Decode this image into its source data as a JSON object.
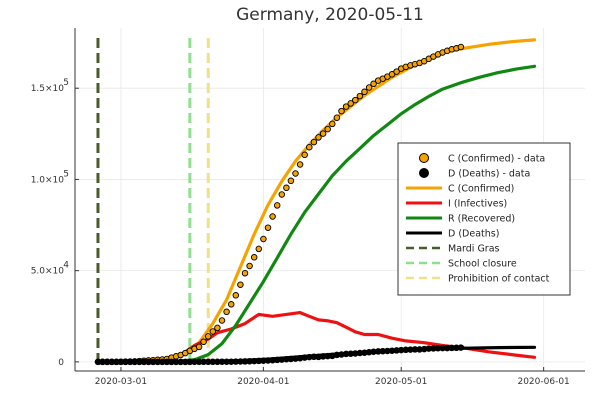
{
  "chart_data": {
    "type": "line",
    "title": "Germany, 2020-05-11",
    "xlabel": "",
    "ylabel": "",
    "x_axis": {
      "unit": "date",
      "range": [
        "2020-02-20",
        "2020-06-10"
      ],
      "ticks": [
        {
          "value": "2020-03-01",
          "label": "2020-03-01"
        },
        {
          "value": "2020-04-01",
          "label": "2020-04-01"
        },
        {
          "value": "2020-05-01",
          "label": "2020-05-01"
        },
        {
          "value": "2020-06-01",
          "label": "2020-06-01"
        }
      ]
    },
    "y_axis": {
      "range": [
        -5000,
        183000
      ],
      "ticks": [
        {
          "value": 0,
          "label": "0",
          "exp": ""
        },
        {
          "value": 50000,
          "label": "5.0×10",
          "exp": "4"
        },
        {
          "value": 100000,
          "label": "1.0×10",
          "exp": "5"
        },
        {
          "value": 150000,
          "label": "1.5×10",
          "exp": "5"
        }
      ]
    },
    "grid": true,
    "legend_position": "right",
    "data_series": [
      {
        "name": "C (Confirmed) - data",
        "color": "#f5a300",
        "marker": "circle",
        "start_date": "2020-02-25",
        "values": [
          18,
          21,
          26,
          53,
          66,
          117,
          150,
          188,
          240,
          400,
          639,
          795,
          902,
          1139,
          1296,
          1567,
          2369,
          3062,
          3795,
          4838,
          6012,
          7156,
          8198,
          10999,
          13957,
          16662,
          18610,
          22672,
          27436,
          31554,
          36508,
          42288,
          48582,
          52547,
          57298,
          61913,
          67366,
          73522,
          79696,
          85778,
          91714,
          95391,
          99225,
          103228,
          108202,
          113525,
          117658,
          120479,
          123016,
          125098,
          127584,
          130450,
          133830,
          137439,
          139897,
          141672,
          143457,
          145694,
          148046,
          150383,
          152438,
          154175,
          155193,
          156337,
          157641,
          159119,
          160758,
          161703,
          162496,
          163175,
          163860,
          164807,
          166091,
          167300,
          168551,
          169575,
          170508,
          171324,
          171879,
          172576
        ]
      },
      {
        "name": "D (Deaths) - data",
        "color": "#000000",
        "marker": "circle",
        "start_date": "2020-02-25",
        "values": [
          0,
          0,
          0,
          0,
          0,
          0,
          0,
          0,
          0,
          0,
          0,
          2,
          2,
          2,
          3,
          3,
          6,
          7,
          9,
          11,
          13,
          17,
          20,
          26,
          31,
          47,
          68,
          84,
          94,
          123,
          157,
          206,
          267,
          342,
          433,
          533,
          645,
          775,
          920,
          1107,
          1275,
          1444,
          1584,
          1810,
          2016,
          2349,
          2607,
          2767,
          2736,
          3022,
          3194,
          3294,
          3804,
          4052,
          4352,
          4459,
          4586,
          4862,
          5033,
          5279,
          5575,
          5760,
          5877,
          5976,
          6126,
          6314,
          6467,
          6623,
          6736,
          6812,
          6866,
          6993,
          7275,
          7392,
          7510,
          7549,
          7569,
          7661,
          7738,
          7809
        ]
      }
    ],
    "model_series": [
      {
        "name": "C (Confirmed)",
        "color": "#f5a300",
        "points": [
          [
            "2020-02-25",
            0
          ],
          [
            "2020-03-10",
            1000
          ],
          [
            "2020-03-14",
            4000
          ],
          [
            "2020-03-18",
            10500
          ],
          [
            "2020-03-21",
            21000
          ],
          [
            "2020-03-24",
            34000
          ],
          [
            "2020-03-27",
            52000
          ],
          [
            "2020-03-30",
            70000
          ],
          [
            "2020-04-02",
            86000
          ],
          [
            "2020-04-05",
            99000
          ],
          [
            "2020-04-08",
            110000
          ],
          [
            "2020-04-11",
            119000
          ],
          [
            "2020-04-14",
            127000
          ],
          [
            "2020-04-17",
            134000
          ],
          [
            "2020-04-20",
            140000
          ],
          [
            "2020-04-23",
            146000
          ],
          [
            "2020-04-26",
            151000
          ],
          [
            "2020-04-29",
            156000
          ],
          [
            "2020-05-02",
            160000
          ],
          [
            "2020-05-05",
            164000
          ],
          [
            "2020-05-08",
            167000
          ],
          [
            "2020-05-11",
            170000
          ],
          [
            "2020-05-15",
            172000
          ],
          [
            "2020-05-20",
            174000
          ],
          [
            "2020-05-25",
            175500
          ],
          [
            "2020-05-30",
            176500
          ]
        ]
      },
      {
        "name": "I (Infectives)",
        "color": "#ee1111",
        "points": [
          [
            "2020-02-25",
            0
          ],
          [
            "2020-03-10",
            1000
          ],
          [
            "2020-03-14",
            3500
          ],
          [
            "2020-03-17",
            9000
          ],
          [
            "2020-03-20",
            12500
          ],
          [
            "2020-03-22",
            16000
          ],
          [
            "2020-03-25",
            18000
          ],
          [
            "2020-03-28",
            21000
          ],
          [
            "2020-03-31",
            26000
          ],
          [
            "2020-04-03",
            25000
          ],
          [
            "2020-04-06",
            26000
          ],
          [
            "2020-04-09",
            27000
          ],
          [
            "2020-04-11",
            25000
          ],
          [
            "2020-04-13",
            23000
          ],
          [
            "2020-04-15",
            22500
          ],
          [
            "2020-04-17",
            21500
          ],
          [
            "2020-04-19",
            19000
          ],
          [
            "2020-04-21",
            16500
          ],
          [
            "2020-04-23",
            15000
          ],
          [
            "2020-04-26",
            15000
          ],
          [
            "2020-04-29",
            13000
          ],
          [
            "2020-05-02",
            11500
          ],
          [
            "2020-05-06",
            10500
          ],
          [
            "2020-05-10",
            9000
          ],
          [
            "2020-05-15",
            7500
          ],
          [
            "2020-05-20",
            5500
          ],
          [
            "2020-05-25",
            4000
          ],
          [
            "2020-05-30",
            2500
          ]
        ]
      },
      {
        "name": "R (Recovered)",
        "color": "#118811",
        "points": [
          [
            "2020-02-25",
            0
          ],
          [
            "2020-03-10",
            0
          ],
          [
            "2020-03-14",
            500
          ],
          [
            "2020-03-17",
            1200
          ],
          [
            "2020-03-20",
            4000
          ],
          [
            "2020-03-23",
            10000
          ],
          [
            "2020-03-26",
            20000
          ],
          [
            "2020-03-29",
            32000
          ],
          [
            "2020-04-01",
            44000
          ],
          [
            "2020-04-04",
            57000
          ],
          [
            "2020-04-07",
            70000
          ],
          [
            "2020-04-10",
            82000
          ],
          [
            "2020-04-13",
            92000
          ],
          [
            "2020-04-16",
            102000
          ],
          [
            "2020-04-19",
            110000
          ],
          [
            "2020-04-22",
            117000
          ],
          [
            "2020-04-25",
            124000
          ],
          [
            "2020-04-28",
            130000
          ],
          [
            "2020-05-01",
            136000
          ],
          [
            "2020-05-04",
            141000
          ],
          [
            "2020-05-07",
            145500
          ],
          [
            "2020-05-10",
            149500
          ],
          [
            "2020-05-14",
            153000
          ],
          [
            "2020-05-18",
            156000
          ],
          [
            "2020-05-22",
            158500
          ],
          [
            "2020-05-26",
            160500
          ],
          [
            "2020-05-30",
            162000
          ]
        ]
      },
      {
        "name": "D (Deaths)",
        "color": "#000000",
        "points": [
          [
            "2020-02-25",
            0
          ],
          [
            "2020-03-14",
            0
          ],
          [
            "2020-03-20",
            100
          ],
          [
            "2020-03-27",
            700
          ],
          [
            "2020-04-03",
            1700
          ],
          [
            "2020-04-10",
            3000
          ],
          [
            "2020-04-17",
            4300
          ],
          [
            "2020-04-24",
            5400
          ],
          [
            "2020-05-01",
            6300
          ],
          [
            "2020-05-08",
            7000
          ],
          [
            "2020-05-15",
            7500
          ],
          [
            "2020-05-22",
            7800
          ],
          [
            "2020-05-30",
            8000
          ]
        ]
      }
    ],
    "vlines": [
      {
        "name": "Mardi Gras",
        "date": "2020-02-25",
        "color": "#4a5c2a"
      },
      {
        "name": "School closure",
        "date": "2020-03-16",
        "color": "#8ee08e"
      },
      {
        "name": "Prohibition of contact",
        "date": "2020-03-20",
        "color": "#f0e08a"
      }
    ]
  }
}
